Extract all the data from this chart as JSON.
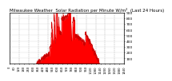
{
  "title": "Milwaukee Weather  Solar Radiation per Minute W/m²  (Last 24 Hours)",
  "fill_color": "#ff0000",
  "edge_color": "#cc0000",
  "background_color": "#ffffff",
  "vgrid_color": "#aaaaaa",
  "hgrid_color": "#dddddd",
  "text_color": "#000000",
  "ylim": [
    0,
    900
  ],
  "ytick_values": [
    100,
    200,
    300,
    400,
    500,
    600,
    700,
    800,
    900
  ],
  "xlim": [
    0,
    1440
  ],
  "num_points": 1440,
  "title_fontsize": 4.0,
  "tick_fontsize": 3.2
}
